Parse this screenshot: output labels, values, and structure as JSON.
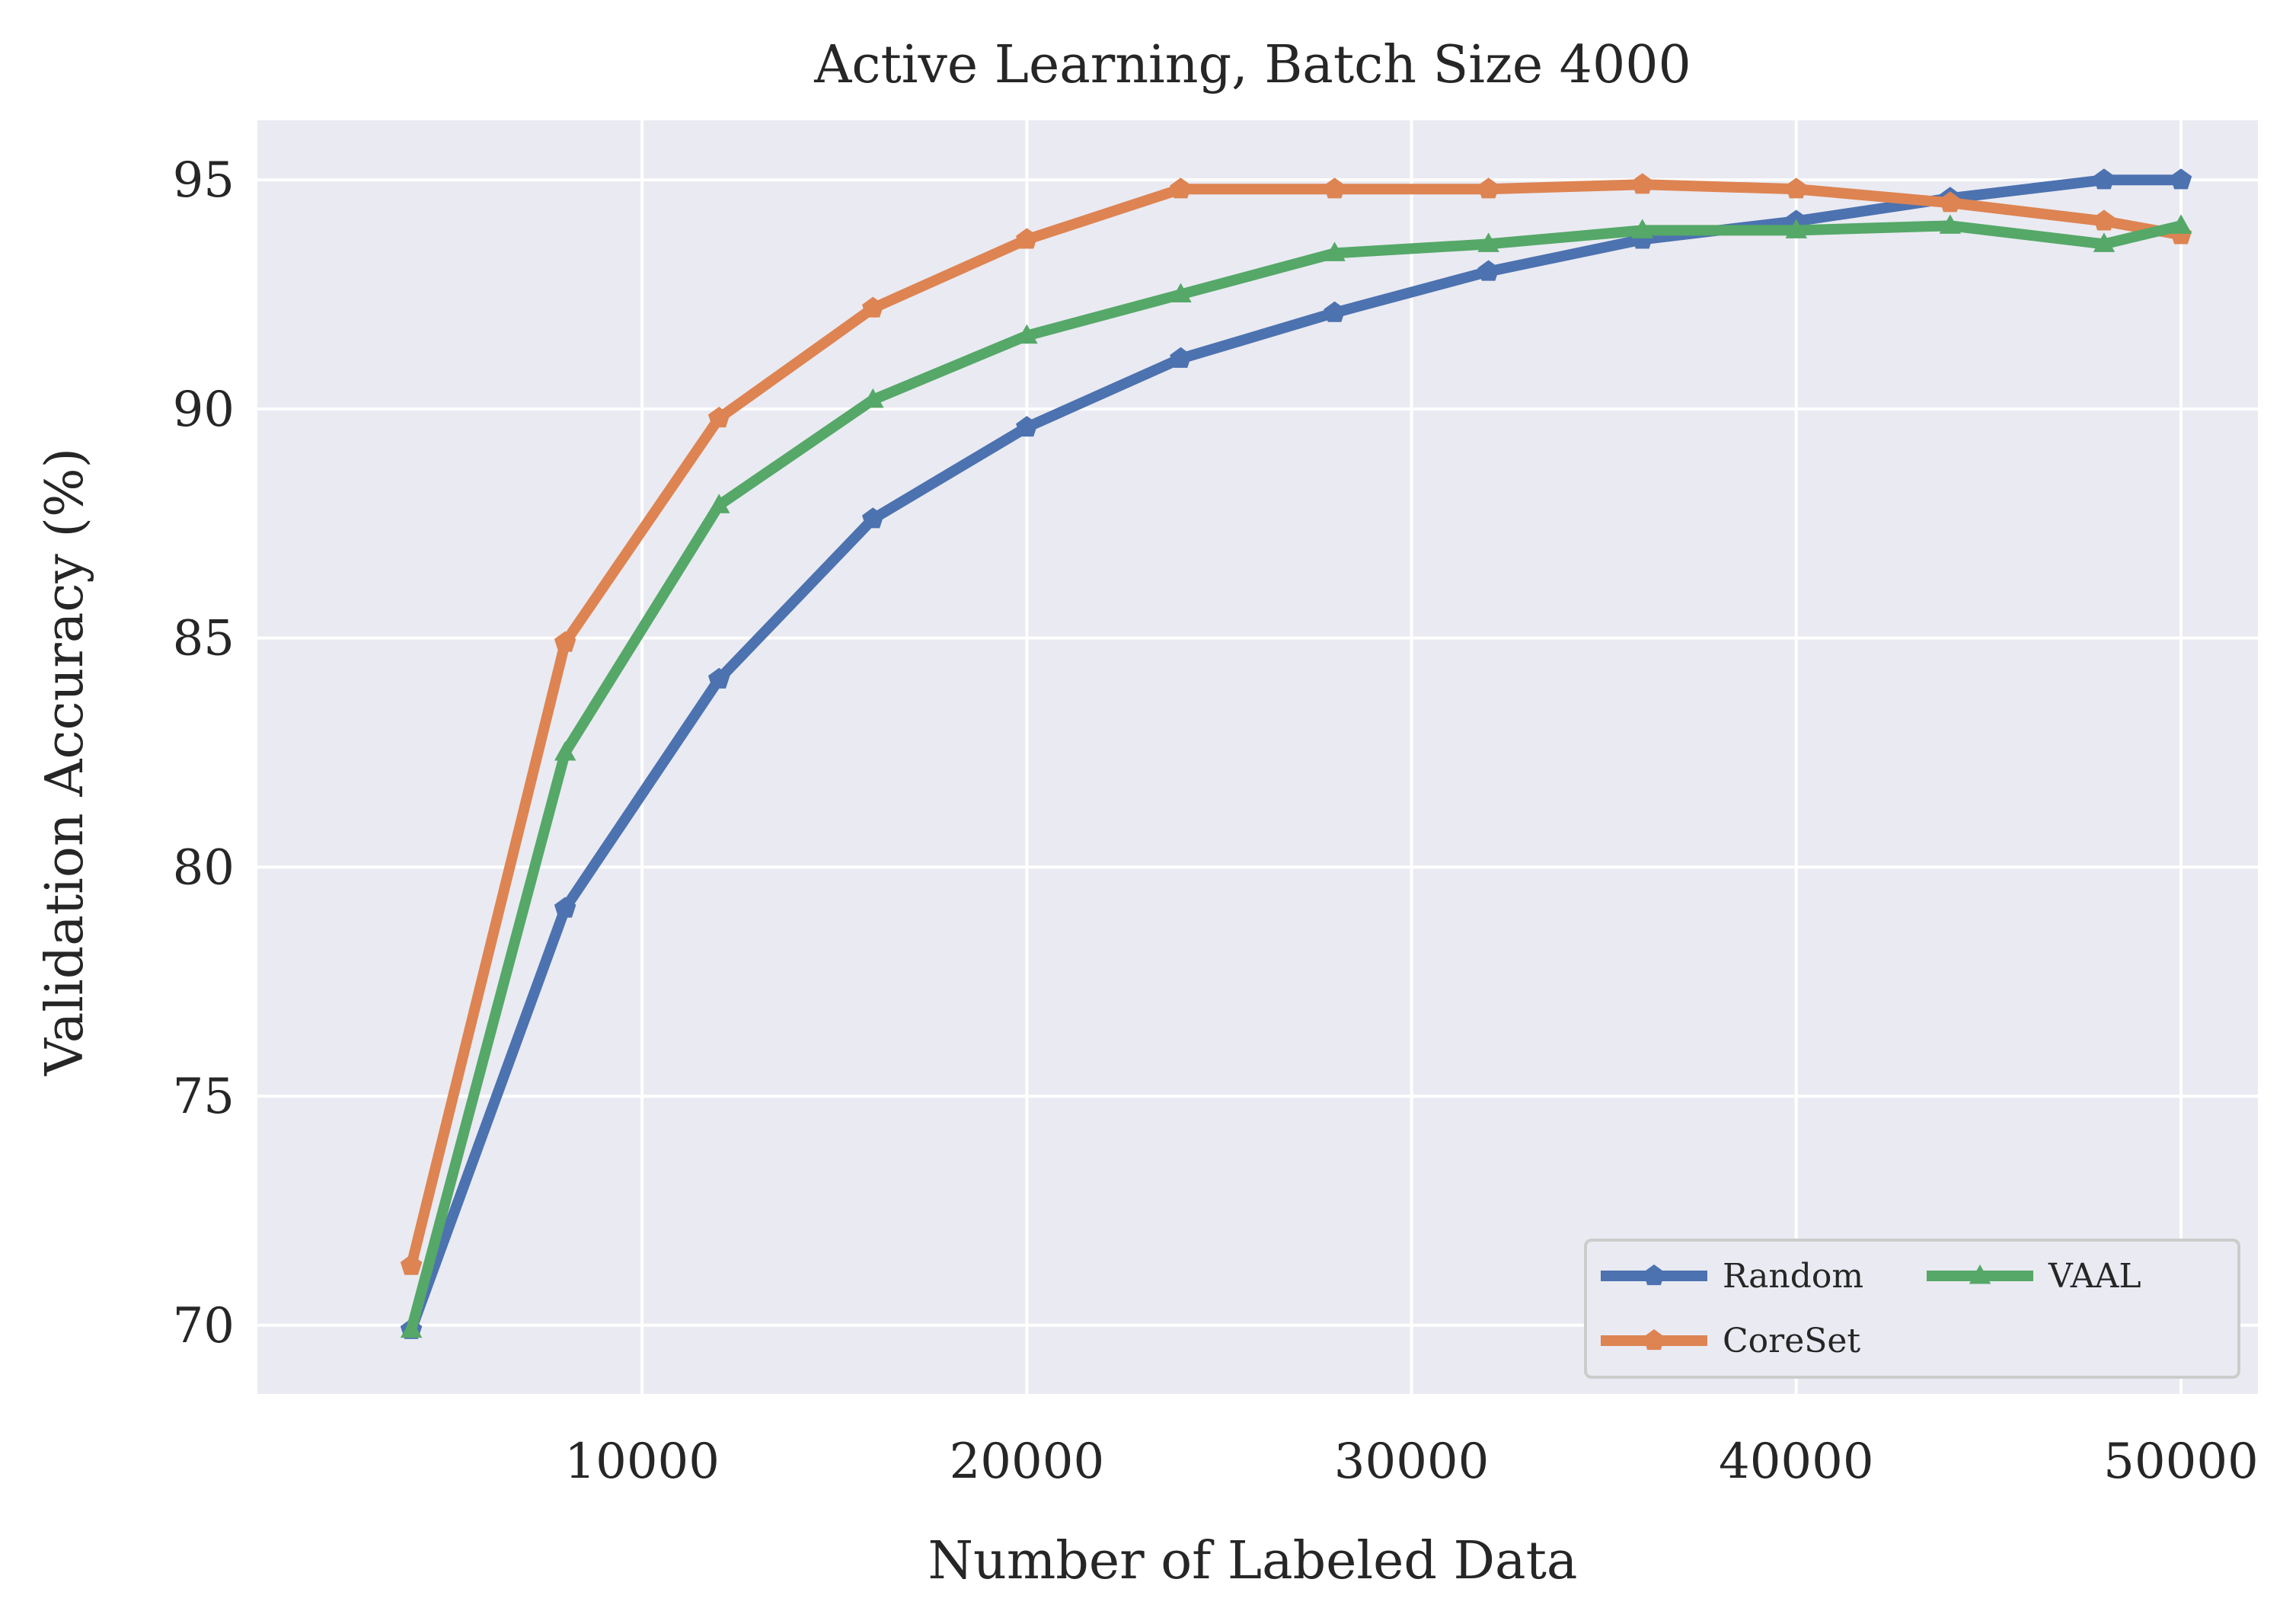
{
  "chart_data": {
    "type": "line",
    "title": "Active Learning, Batch Size 4000",
    "xlabel": "Number of Labeled Data",
    "ylabel": "Validation Accuracy (%)",
    "xlim": [
      0,
      52000
    ],
    "ylim": [
      68.5,
      96.3
    ],
    "xticks": [
      10000,
      20000,
      30000,
      40000,
      50000
    ],
    "yticks": [
      70,
      75,
      80,
      85,
      90,
      95
    ],
    "grid": true,
    "legend_placement": "lower-right",
    "legend_columns": 2,
    "background": "#EAEAF2",
    "grid_color": "#FFFFFF",
    "x": [
      4000,
      8000,
      12000,
      16000,
      20000,
      24000,
      28000,
      32000,
      36000,
      40000,
      44000,
      48000,
      50000
    ],
    "series": [
      {
        "name": "Random",
        "color": "#4C72B0",
        "marker": "pentagon",
        "values": [
          69.9,
          79.1,
          84.1,
          87.6,
          89.6,
          91.1,
          92.1,
          93.0,
          93.7,
          94.1,
          94.6,
          95.0,
          95.0
        ]
      },
      {
        "name": "CoreSet",
        "color": "#DD8452",
        "marker": "pentagon",
        "values": [
          71.3,
          84.9,
          89.8,
          92.2,
          93.7,
          94.8,
          94.8,
          94.8,
          94.9,
          94.8,
          94.5,
          94.1,
          93.8
        ]
      },
      {
        "name": "VAAL",
        "color": "#55A868",
        "marker": "triangle",
        "values": [
          69.9,
          82.5,
          87.9,
          90.2,
          91.6,
          92.5,
          93.4,
          93.6,
          93.9,
          93.9,
          94.0,
          93.6,
          94.0
        ]
      }
    ]
  }
}
